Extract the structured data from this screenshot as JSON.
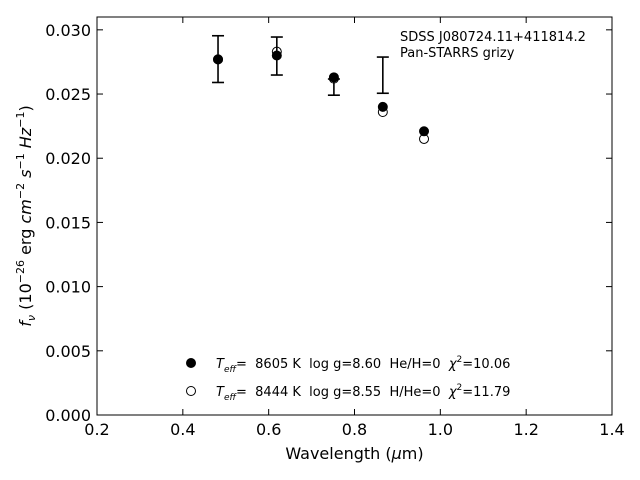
{
  "chart_data": {
    "type": "scatter",
    "annotation_lines": [
      "SDSS J080724.11+411814.2",
      "Pan-STARRS grizy"
    ],
    "xlabel": {
      "main": "Wavelength (",
      "mu": "μ",
      "unit": "m)"
    },
    "ylabel": {
      "f": "f",
      "nu": "ν",
      "open": " (10",
      "exp1": "−26",
      "erg": " erg ",
      "cm": "cm",
      "exp2": "−2",
      "s": " s",
      "exp3": "−1",
      "hz": " Hz",
      "exp4": "−1",
      "close": ")"
    },
    "xlim": [
      0.2,
      1.4
    ],
    "ylim": [
      0.0,
      0.031
    ],
    "x_ticks": [
      0.2,
      0.4,
      0.6,
      0.8,
      1.0,
      1.2,
      1.4
    ],
    "x_tick_labels": [
      "0.2",
      "0.4",
      "0.6",
      "0.8",
      "1.0",
      "1.2",
      "1.4"
    ],
    "y_ticks": [
      0.0,
      0.005,
      0.01,
      0.015,
      0.02,
      0.025,
      0.03
    ],
    "y_tick_labels": [
      "0.000",
      "0.005",
      "0.010",
      "0.015",
      "0.020",
      "0.025",
      "0.030"
    ],
    "grid": false,
    "legend_position": "lower-center",
    "observed": {
      "x": [
        0.482,
        0.619,
        0.752,
        0.866,
        0.962
      ],
      "y": [
        0.02772,
        0.02796,
        0.02554,
        0.02647,
        null
      ],
      "yerr": [
        0.00182,
        0.00148,
        0.00063,
        0.00141,
        null
      ]
    },
    "series": [
      {
        "marker": "filled",
        "x": [
          0.482,
          0.619,
          0.752,
          0.866,
          0.962
        ],
        "y": [
          0.0277,
          0.028,
          0.0263,
          0.024,
          0.0221
        ],
        "legend": {
          "t": "T",
          "sub": "eff",
          "rest": "=  8605 K  log g=8.60  He/H=0  ",
          "chi": "χ",
          "chisup": "2",
          "val": "=10.06"
        }
      },
      {
        "marker": "open",
        "x": [
          0.482,
          0.619,
          0.752,
          0.866,
          0.962
        ],
        "y": [
          0.0277,
          0.0283,
          0.0262,
          0.0236,
          0.0215
        ],
        "legend": {
          "t": "T",
          "sub": "eff",
          "rest": "=  8444 K  log g=8.55  H/He=0  ",
          "chi": "χ",
          "chisup": "2",
          "val": "=11.79"
        }
      }
    ]
  }
}
